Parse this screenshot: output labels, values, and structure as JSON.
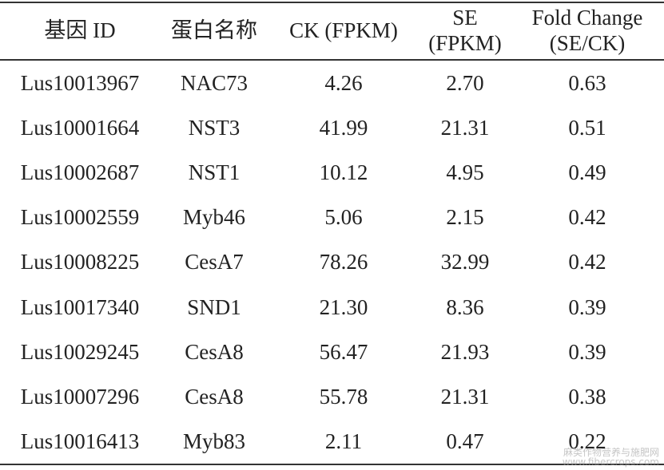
{
  "table": {
    "header": [
      [
        "基因 ID"
      ],
      [
        "蛋白名称"
      ],
      [
        "CK (FPKM)"
      ],
      [
        "SE",
        "(FPKM)"
      ],
      [
        "Fold Change",
        "(SE/CK)"
      ]
    ],
    "rows": [
      [
        "Lus10013967",
        "NAC73",
        "4.26",
        "2.70",
        "0.63"
      ],
      [
        "Lus10001664",
        "NST3",
        "41.99",
        "21.31",
        "0.51"
      ],
      [
        "Lus10002687",
        "NST1",
        "10.12",
        "4.95",
        "0.49"
      ],
      [
        "Lus10002559",
        "Myb46",
        "5.06",
        "2.15",
        "0.42"
      ],
      [
        "Lus10008225",
        "CesA7",
        "78.26",
        "32.99",
        "0.42"
      ],
      [
        "Lus10017340",
        "SND1",
        "21.30",
        "8.36",
        "0.39"
      ],
      [
        "Lus10029245",
        "CesA8",
        "56.47",
        "21.93",
        "0.39"
      ],
      [
        "Lus10007296",
        "CesA8",
        "55.78",
        "21.31",
        "0.38"
      ],
      [
        "Lus10016413",
        "Myb83",
        "2.11",
        "0.47",
        "0.22"
      ]
    ]
  },
  "watermark": {
    "name": "麻类作物营养与施肥网",
    "url": "www.fibercrops.com"
  }
}
